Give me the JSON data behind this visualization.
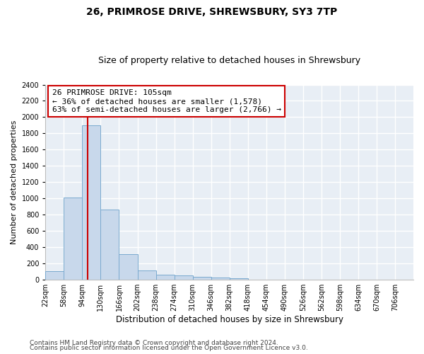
{
  "title1": "26, PRIMROSE DRIVE, SHREWSBURY, SY3 7TP",
  "title2": "Size of property relative to detached houses in Shrewsbury",
  "xlabel": "Distribution of detached houses by size in Shrewsbury",
  "ylabel": "Number of detached properties",
  "bin_edges": [
    22,
    58,
    94,
    130,
    166,
    202,
    238,
    274,
    310,
    346,
    382,
    418,
    454,
    490,
    526,
    562,
    598,
    634,
    670,
    706,
    742
  ],
  "bar_heights": [
    100,
    1010,
    1900,
    860,
    315,
    115,
    55,
    50,
    30,
    20,
    15,
    0,
    0,
    0,
    0,
    0,
    0,
    0,
    0,
    0
  ],
  "bar_color": "#c8d8eb",
  "bar_edgecolor": "#7aaacf",
  "vline_x": 105,
  "vline_color": "#cc0000",
  "annotation_text": "26 PRIMROSE DRIVE: 105sqm\n← 36% of detached houses are smaller (1,578)\n63% of semi-detached houses are larger (2,766) →",
  "annotation_box_color": "white",
  "annotation_box_edgecolor": "#cc0000",
  "ylim": [
    0,
    2400
  ],
  "yticks": [
    0,
    200,
    400,
    600,
    800,
    1000,
    1200,
    1400,
    1600,
    1800,
    2000,
    2200,
    2400
  ],
  "footer1": "Contains HM Land Registry data © Crown copyright and database right 2024.",
  "footer2": "Contains public sector information licensed under the Open Government Licence v3.0.",
  "fig_facecolor": "#ffffff",
  "plot_bg_color": "#e8eef5",
  "grid_color": "#ffffff",
  "title1_fontsize": 10,
  "title2_fontsize": 9,
  "xlabel_fontsize": 8.5,
  "ylabel_fontsize": 8,
  "tick_fontsize": 7,
  "annotation_fontsize": 8,
  "footer_fontsize": 6.5
}
